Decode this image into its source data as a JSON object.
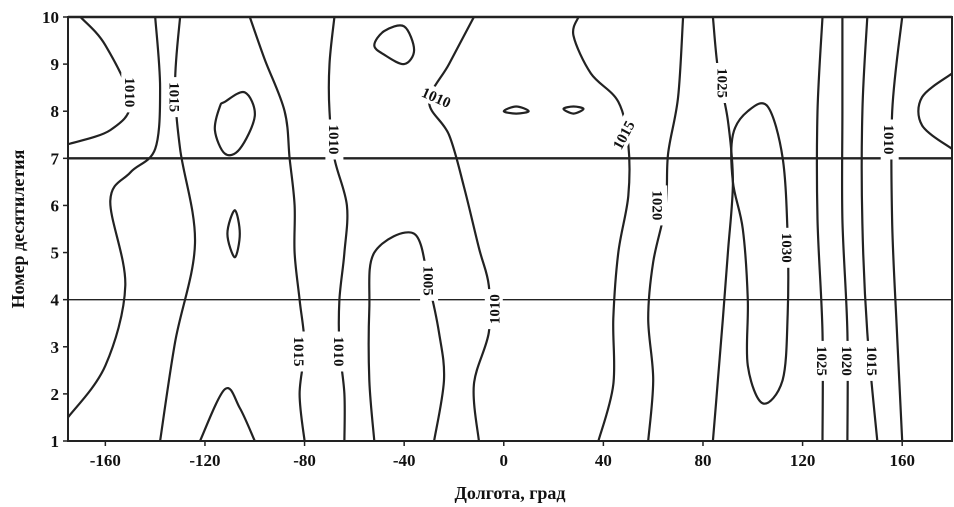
{
  "chart_data": {
    "type": "contour",
    "title": "",
    "xlabel": "Долгота, град",
    "ylabel": "Номер десятилетия",
    "xlim": [
      -175,
      180
    ],
    "ylim": [
      1,
      10
    ],
    "xticks": [
      -160,
      -120,
      -80,
      -40,
      0,
      40,
      80,
      120,
      160
    ],
    "yticks": [
      1,
      2,
      3,
      4,
      5,
      6,
      7,
      8,
      9,
      10
    ],
    "reference_lines_y": [
      4,
      7,
      10
    ],
    "contours": [
      {
        "level": "1010",
        "points": [
          [
            -175,
            1.5
          ],
          [
            -160,
            2.6
          ],
          [
            -152,
            4.3
          ],
          [
            -158,
            6.1
          ],
          [
            -150,
            6.7
          ],
          [
            -140,
            7.2
          ],
          [
            -138,
            8.5
          ],
          [
            -140,
            10
          ]
        ]
      },
      {
        "level": "1015",
        "points": [
          [
            -138,
            1
          ],
          [
            -132,
            3.1
          ],
          [
            -124,
            5.2
          ],
          [
            -130,
            7.2
          ],
          [
            -132,
            8.6
          ],
          [
            -130,
            10
          ]
        ]
      },
      {
        "level": "",
        "points": [
          [
            -175,
            7.3
          ],
          [
            -158,
            7.6
          ],
          [
            -150,
            8.2
          ],
          [
            -160,
            9.4
          ],
          [
            -170,
            10
          ]
        ]
      },
      {
        "level": "",
        "points": [
          [
            -112,
            8.2
          ],
          [
            -104,
            8.4
          ],
          [
            -100,
            7.9
          ],
          [
            -106,
            7.2
          ],
          [
            -112,
            7.1
          ],
          [
            -116,
            7.6
          ],
          [
            -114,
            8.1
          ],
          [
            -112,
            8.2
          ]
        ]
      },
      {
        "level": "",
        "points": [
          [
            -108,
            5.9
          ],
          [
            -106,
            5.4
          ],
          [
            -108,
            4.9
          ],
          [
            -111,
            5.4
          ],
          [
            -108,
            5.9
          ]
        ]
      },
      {
        "level": "",
        "points": [
          [
            -122,
            1
          ],
          [
            -112,
            2.1
          ],
          [
            -106,
            1.7
          ],
          [
            -100,
            1
          ]
        ]
      },
      {
        "level": "1015",
        "points": [
          [
            -102,
            10
          ],
          [
            -96,
            9.1
          ],
          [
            -88,
            8.0
          ],
          [
            -86,
            7.0
          ],
          [
            -84,
            6.0
          ],
          [
            -84,
            5.0
          ],
          [
            -82,
            4.0
          ],
          [
            -80,
            3.0
          ],
          [
            -82,
            2.0
          ],
          [
            -80,
            1
          ]
        ]
      },
      {
        "level": "1010",
        "points": [
          [
            -68,
            10
          ],
          [
            -70,
            9.0
          ],
          [
            -70,
            8.0
          ],
          [
            -68,
            7.0
          ],
          [
            -63,
            6.0
          ],
          [
            -64,
            5.0
          ],
          [
            -66,
            4.0
          ],
          [
            -66,
            3.0
          ],
          [
            -64,
            2.0
          ],
          [
            -64,
            1
          ]
        ]
      },
      {
        "level": "",
        "points": [
          [
            -48,
            9.2
          ],
          [
            -40,
            9.0
          ],
          [
            -36,
            9.3
          ],
          [
            -40,
            9.8
          ],
          [
            -48,
            9.7
          ],
          [
            -52,
            9.4
          ],
          [
            -48,
            9.2
          ]
        ]
      },
      {
        "level": "1005",
        "points": [
          [
            -52,
            1
          ],
          [
            -54,
            2.3
          ],
          [
            -54,
            3.8
          ],
          [
            -52,
            5.0
          ],
          [
            -36,
            5.4
          ],
          [
            -30,
            4.3
          ],
          [
            -26,
            3.3
          ],
          [
            -24,
            2.3
          ],
          [
            -28,
            1
          ]
        ]
      },
      {
        "level": "1010",
        "points": [
          [
            -12,
            10
          ],
          [
            -22,
            9.0
          ],
          [
            -30,
            8.2
          ],
          [
            -22,
            7.5
          ],
          [
            -16,
            6.4
          ],
          [
            -10,
            5.1
          ],
          [
            -6,
            4.3
          ],
          [
            -6,
            3.3
          ],
          [
            -12,
            2.2
          ],
          [
            -10,
            1
          ]
        ]
      },
      {
        "level": "",
        "points": [
          [
            0,
            8.0
          ],
          [
            5,
            8.1
          ],
          [
            10,
            8.0
          ],
          [
            5,
            7.95
          ],
          [
            0,
            8.0
          ]
        ]
      },
      {
        "level": "",
        "points": [
          [
            24,
            8.05
          ],
          [
            28,
            8.1
          ],
          [
            32,
            8.05
          ],
          [
            28,
            7.95
          ],
          [
            24,
            8.05
          ]
        ]
      },
      {
        "level": "1015",
        "points": [
          [
            30,
            10
          ],
          [
            28,
            9.6
          ],
          [
            35,
            8.8
          ],
          [
            46,
            8.2
          ],
          [
            50,
            7.3
          ],
          [
            50,
            6.2
          ],
          [
            46,
            5.0
          ],
          [
            44,
            3.6
          ],
          [
            44,
            2.2
          ],
          [
            38,
            1
          ]
        ]
      },
      {
        "level": "1020",
        "points": [
          [
            58,
            1
          ],
          [
            60,
            2.3
          ],
          [
            58,
            3.6
          ],
          [
            60,
            4.8
          ],
          [
            65,
            6.0
          ],
          [
            66,
            7.1
          ],
          [
            70,
            8.3
          ],
          [
            72,
            10
          ]
        ]
      },
      {
        "level": "1025",
        "points": [
          [
            84,
            10
          ],
          [
            86,
            8.9
          ],
          [
            90,
            7.8
          ],
          [
            92,
            6.5
          ],
          [
            90,
            5.0
          ],
          [
            88,
            3.6
          ],
          [
            86,
            2.3
          ],
          [
            84,
            1
          ]
        ]
      },
      {
        "level": "1030",
        "points": [
          [
            104,
            1.8
          ],
          [
            112,
            2.3
          ],
          [
            114,
            3.7
          ],
          [
            114,
            5.3
          ],
          [
            112,
            7.0
          ],
          [
            106,
            8.1
          ],
          [
            98,
            8.0
          ],
          [
            92,
            7.5
          ],
          [
            92,
            6.5
          ],
          [
            96,
            5.5
          ],
          [
            98,
            4.0
          ],
          [
            98,
            2.6
          ],
          [
            104,
            1.8
          ]
        ]
      },
      {
        "level": "1025",
        "points": [
          [
            128,
            1
          ],
          [
            128,
            3.3
          ],
          [
            126,
            5.7
          ],
          [
            126,
            8.0
          ],
          [
            128,
            10
          ]
        ]
      },
      {
        "level": "1020",
        "points": [
          [
            138,
            1
          ],
          [
            138,
            3.3
          ],
          [
            136,
            5.7
          ],
          [
            136,
            8.0
          ],
          [
            136,
            10
          ]
        ]
      },
      {
        "level": "1015",
        "points": [
          [
            150,
            1
          ],
          [
            146,
            3.3
          ],
          [
            144,
            5.6
          ],
          [
            144,
            8.0
          ],
          [
            146,
            10
          ]
        ]
      },
      {
        "level": "1010",
        "points": [
          [
            160,
            1
          ],
          [
            158,
            3.2
          ],
          [
            156,
            5.6
          ],
          [
            156,
            8.0
          ],
          [
            160,
            10
          ]
        ]
      },
      {
        "level": "",
        "points": [
          [
            180,
            7.2
          ],
          [
            168,
            7.7
          ],
          [
            168,
            8.3
          ],
          [
            180,
            8.8
          ]
        ]
      }
    ],
    "contour_labels": [
      {
        "text": "1010",
        "x": -150,
        "y": 8.4,
        "angle": 90
      },
      {
        "text": "1015",
        "x": -132,
        "y": 8.3,
        "angle": 90
      },
      {
        "text": "1010",
        "x": -68,
        "y": 7.4,
        "angle": 90
      },
      {
        "text": "1010",
        "x": -27,
        "y": 8.3,
        "angle": 24
      },
      {
        "text": "1015",
        "x": 48,
        "y": 7.5,
        "angle": -62
      },
      {
        "text": "1025",
        "x": 88,
        "y": 8.6,
        "angle": 90
      },
      {
        "text": "1010",
        "x": 155,
        "y": 7.4,
        "angle": 90
      },
      {
        "text": "1020",
        "x": 62,
        "y": 6.0,
        "angle": 90
      },
      {
        "text": "1030",
        "x": 114,
        "y": 5.1,
        "angle": 90
      },
      {
        "text": "1005",
        "x": -30,
        "y": 4.4,
        "angle": 90
      },
      {
        "text": "1010",
        "x": -4,
        "y": 3.8,
        "angle": -90
      },
      {
        "text": "1015",
        "x": -82,
        "y": 2.9,
        "angle": 90
      },
      {
        "text": "1010",
        "x": -66,
        "y": 2.9,
        "angle": 90
      },
      {
        "text": "1025",
        "x": 128,
        "y": 2.7,
        "angle": 90
      },
      {
        "text": "1020",
        "x": 138,
        "y": 2.7,
        "angle": 90
      },
      {
        "text": "1015",
        "x": 148,
        "y": 2.7,
        "angle": 90
      }
    ],
    "grid": false,
    "legend": "none"
  }
}
